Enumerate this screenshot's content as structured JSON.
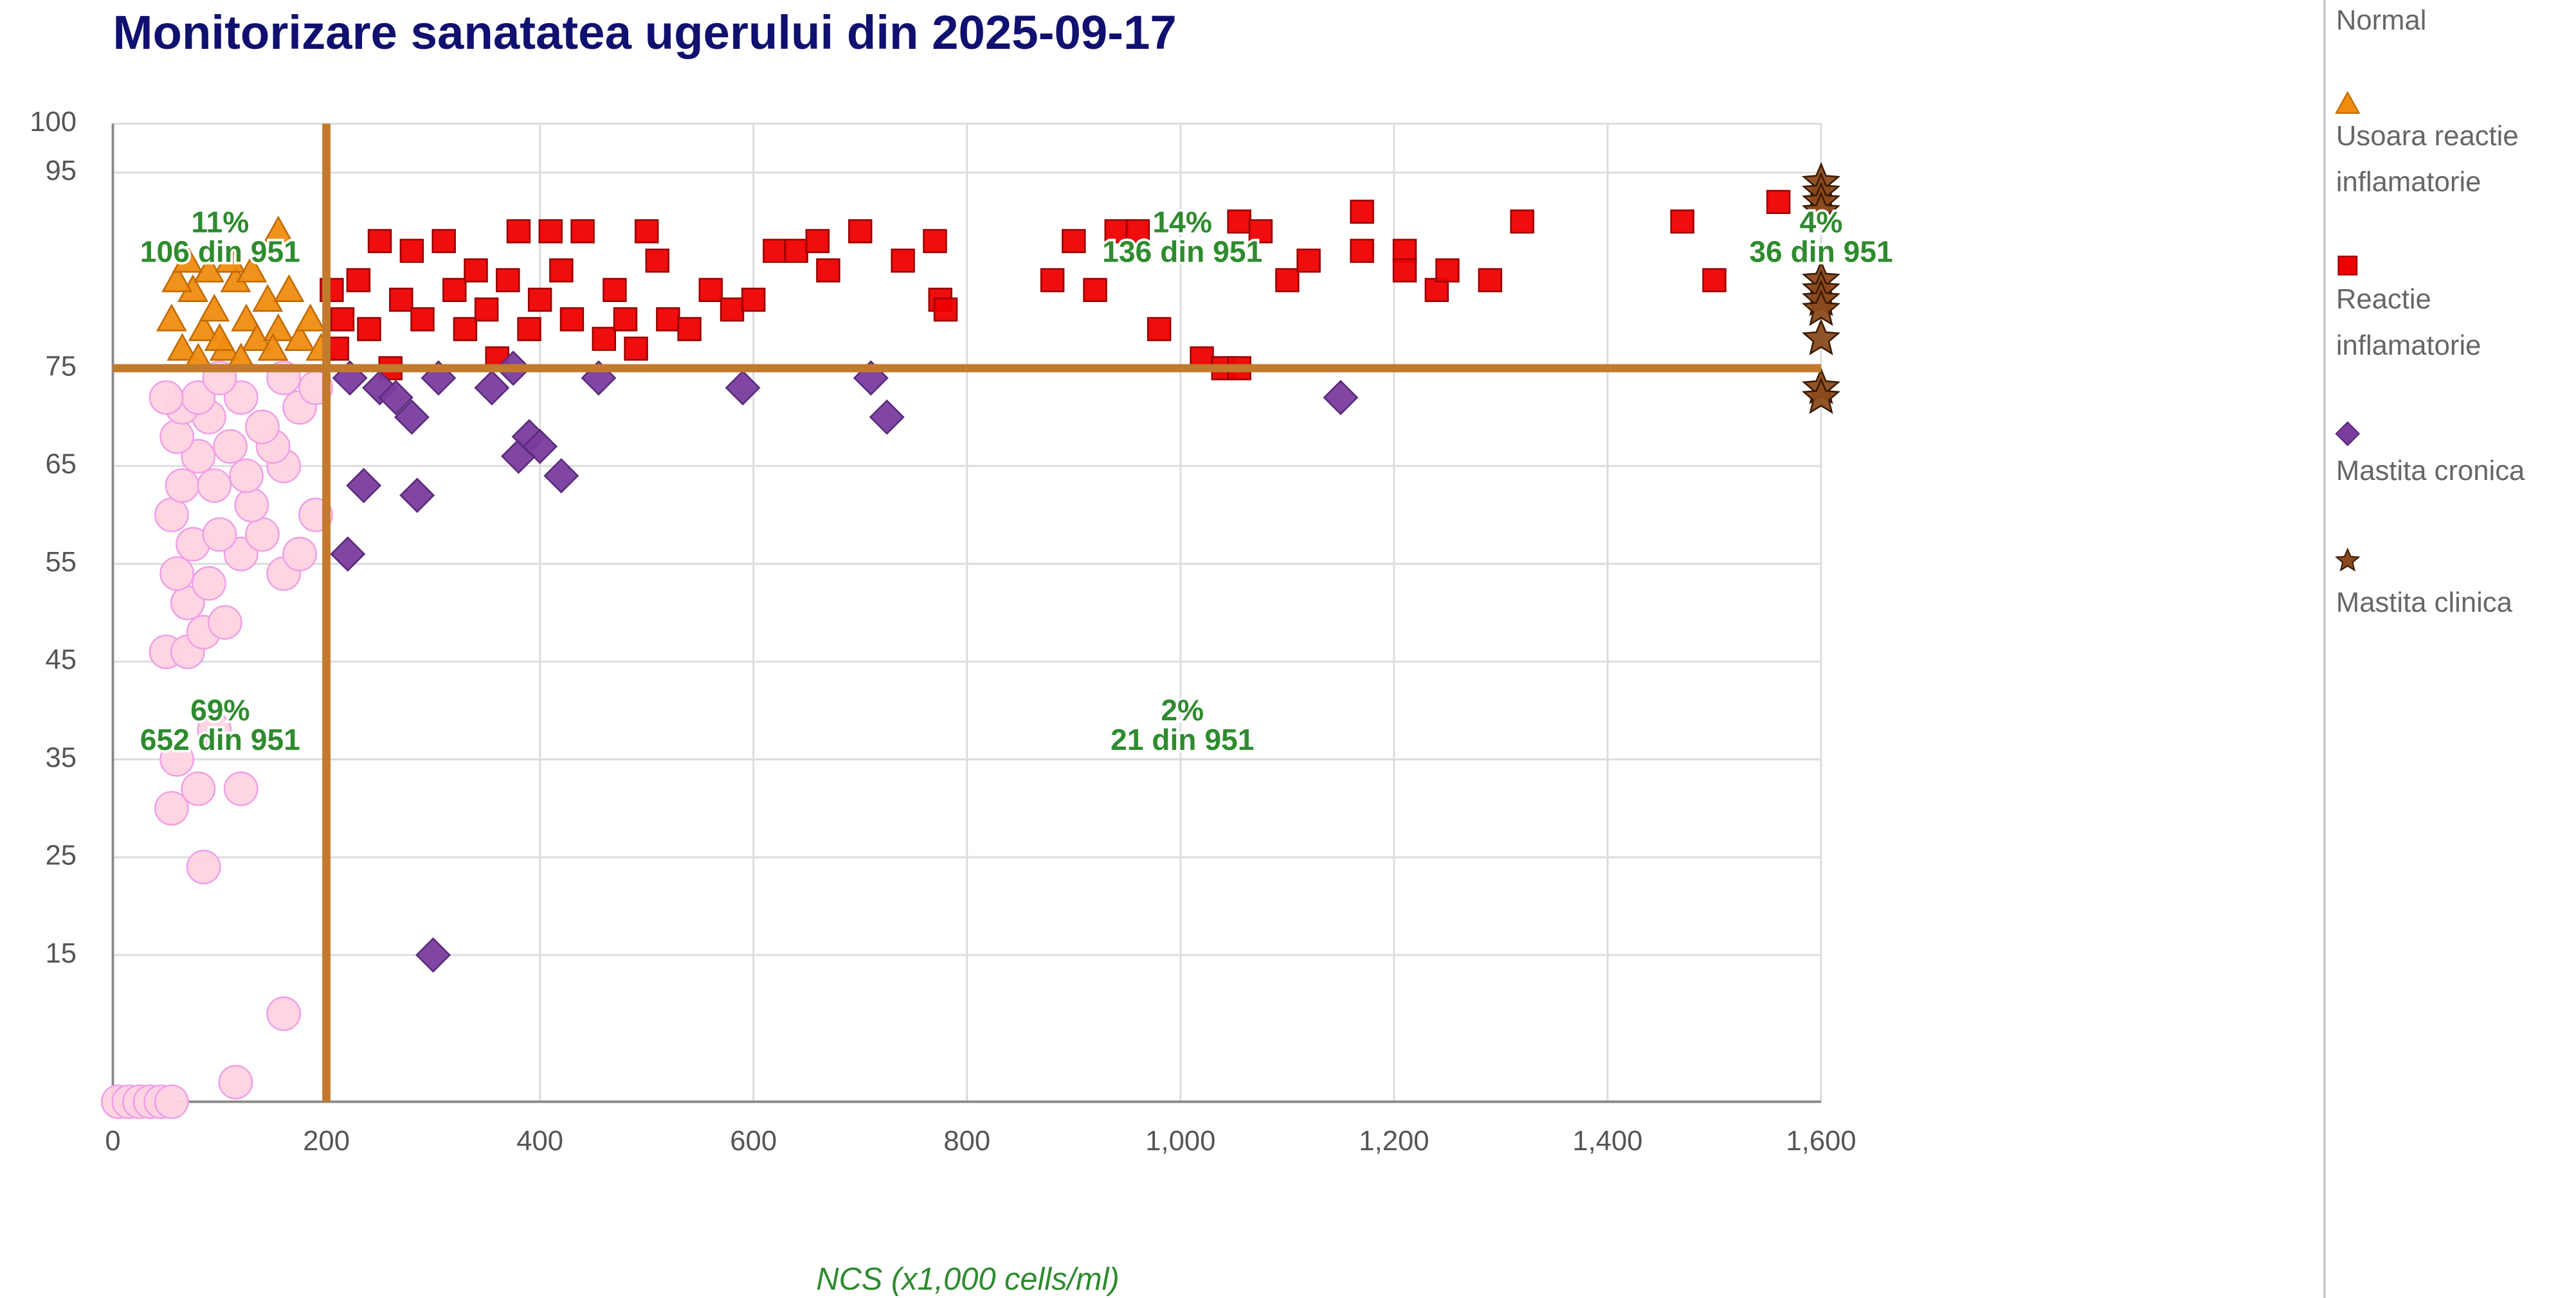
{
  "chart_data": {
    "type": "scatter",
    "title": "Monitorizare sanatatea ugerului din 2025-09-17",
    "x_label": "NCS (x1,000 cells/ml)",
    "xlim": [
      0,
      1600
    ],
    "xticks": [
      0,
      200,
      400,
      600,
      800,
      {
        "value": 1000,
        "label": "1,000"
      },
      {
        "value": 1200,
        "label": "1,200"
      },
      {
        "value": 1400,
        "label": "1,400"
      },
      {
        "value": 1600,
        "label": "1,600"
      }
    ],
    "ylim": [
      0,
      100
    ],
    "yticks": [
      15,
      25,
      35,
      45,
      55,
      65,
      75,
      95,
      100
    ],
    "grid": true,
    "thresholds": {
      "x": 200,
      "y": 75,
      "color": "#c27a2c"
    },
    "legend": "right",
    "annotations": [
      {
        "percent": "11%",
        "count": "106 din 951"
      },
      {
        "percent": "14%",
        "count": "136 din 951"
      },
      {
        "percent": "4%",
        "count": "36 din 951"
      },
      {
        "percent": "69%",
        "count": "652 din 951"
      },
      {
        "percent": "2%",
        "count": "21 din 951"
      }
    ],
    "series": [
      {
        "name": "Normal",
        "marker": "circle",
        "color": "#ffd3e0",
        "edge": "#f0a0e8",
        "x": [
          5,
          15,
          25,
          35,
          45,
          55,
          115,
          160,
          85,
          55,
          80,
          120,
          60,
          95,
          50,
          70,
          85,
          105,
          70,
          90,
          60,
          160,
          120,
          175,
          75,
          100,
          140,
          55,
          190,
          130,
          65,
          95,
          125,
          160,
          80,
          110,
          150,
          60,
          140,
          90,
          175,
          65,
          120,
          80,
          160,
          100,
          190,
          50
        ],
        "y": [
          0,
          0,
          0,
          0,
          0,
          0,
          2,
          9,
          24,
          30,
          32,
          32,
          35,
          38,
          46,
          46,
          48,
          49,
          51,
          53,
          54,
          54,
          56,
          56,
          57,
          58,
          58,
          60,
          60,
          61,
          63,
          63,
          64,
          65,
          66,
          67,
          67,
          68,
          69,
          70,
          71,
          71,
          72,
          72,
          74,
          74,
          73,
          72
        ]
      },
      {
        "name": "Usoara reactie inflamatorie",
        "marker": "triangle",
        "color": "#f08c10",
        "edge": "#c06a00",
        "x": [
          55,
          65,
          75,
          85,
          95,
          105,
          115,
          125,
          135,
          145,
          155,
          165,
          175,
          60,
          90,
          120,
          150,
          185,
          195,
          155,
          70,
          130,
          100,
          110,
          80
        ],
        "y": [
          80,
          77,
          83,
          79,
          81,
          77,
          84,
          80,
          78,
          82,
          79,
          83,
          78,
          84,
          85,
          76,
          77,
          80,
          77,
          89,
          86,
          85,
          78,
          86,
          76
        ]
      },
      {
        "name": "Reactie inflamatorie",
        "marker": "square",
        "color": "#ee0000",
        "edge": "#990000",
        "x": [
          210,
          205,
          215,
          230,
          240,
          250,
          260,
          270,
          280,
          290,
          310,
          320,
          330,
          340,
          350,
          360,
          370,
          380,
          390,
          400,
          410,
          420,
          430,
          440,
          460,
          470,
          480,
          490,
          500,
          510,
          520,
          540,
          560,
          580,
          600,
          620,
          640,
          660,
          670,
          700,
          740,
          770,
          775,
          780,
          880,
          900,
          920,
          940,
          960,
          980,
          1020,
          1040,
          1055,
          1055,
          1075,
          1100,
          1120,
          1170,
          1170,
          1210,
          1210,
          1240,
          1250,
          1290,
          1320,
          1470,
          1500,
          1560
        ],
        "y": [
          77,
          83,
          80,
          84,
          79,
          88,
          75,
          82,
          87,
          80,
          88,
          83,
          79,
          85,
          81,
          76,
          84,
          89,
          79,
          82,
          89,
          85,
          80,
          89,
          78,
          83,
          80,
          77,
          89,
          86,
          80,
          79,
          83,
          81,
          82,
          87,
          87,
          88,
          85,
          89,
          86,
          88,
          82,
          81,
          84,
          88,
          83,
          89,
          89,
          79,
          76,
          75,
          75,
          90,
          89,
          84,
          86,
          91,
          87,
          87,
          85,
          83,
          85,
          84,
          90,
          90,
          84,
          92
        ]
      },
      {
        "name": "Mastita cronica",
        "marker": "diamond",
        "color": "#7a3c9e",
        "edge": "#5a2a7a",
        "x": [
          222,
          235,
          220,
          250,
          265,
          280,
          285,
          305,
          355,
          375,
          380,
          390,
          400,
          420,
          455,
          590,
          710,
          725,
          1150,
          300
        ],
        "y": [
          74,
          63,
          56,
          73,
          72,
          70,
          62,
          74,
          73,
          75,
          66,
          68,
          67,
          64,
          74,
          73,
          74,
          70,
          72,
          15
        ]
      },
      {
        "name": "Mastita clinica",
        "marker": "star",
        "color": "#8b4a1c",
        "edge": "#3a1a00",
        "x": [
          1600,
          1600,
          1600,
          1600,
          1600,
          1600,
          1600,
          1600,
          1600,
          1600,
          1600
        ],
        "y": [
          94,
          93,
          92,
          91,
          84,
          83,
          82,
          81,
          78,
          73,
          72
        ]
      }
    ]
  }
}
